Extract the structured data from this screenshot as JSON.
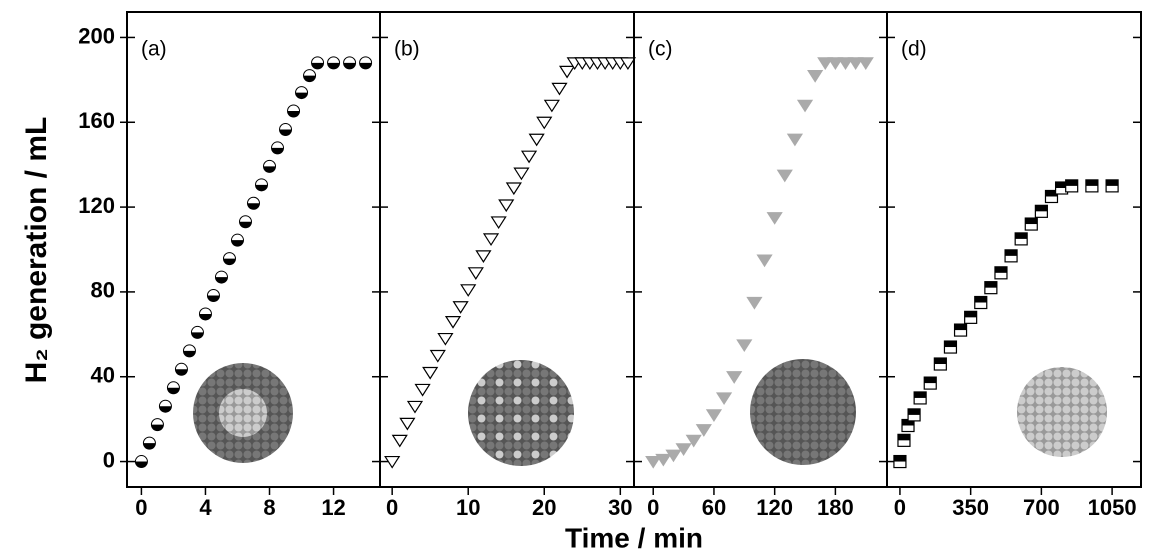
{
  "ylabel": "H₂ generation / mL",
  "xlabel": "Time / min",
  "chart_data": [
    {
      "type": "scatter",
      "panel_label": "(a)",
      "marker": "circle",
      "color": "#000000",
      "x": [
        0,
        0.5,
        1,
        1.5,
        2,
        2.5,
        3,
        3.5,
        4,
        4.5,
        5,
        5.5,
        6,
        6.5,
        7,
        7.5,
        8,
        8.5,
        9,
        9.5,
        10,
        10.5,
        11,
        12,
        13,
        14
      ],
      "values": [
        0,
        8.7,
        17.4,
        26.1,
        34.8,
        43.5,
        52.2,
        60.9,
        69.6,
        78.3,
        87,
        95.7,
        104.4,
        113.1,
        121.8,
        130.5,
        139.2,
        147.9,
        156.6,
        165.3,
        174,
        182,
        188,
        188,
        188,
        188
      ],
      "xlim": [
        -0.9,
        14.9
      ],
      "xticks": [
        0,
        4,
        8,
        12
      ],
      "ylim": [
        -12,
        212
      ],
      "yticks": [
        0,
        40,
        80,
        120,
        160,
        200
      ]
    },
    {
      "type": "scatter",
      "panel_label": "(b)",
      "marker": "triangle",
      "color": "#000000",
      "x": [
        0,
        1,
        2,
        3,
        4,
        5,
        6,
        7,
        8,
        9,
        10,
        11,
        12,
        13,
        14,
        15,
        16,
        17,
        18,
        19,
        20,
        21,
        22,
        23,
        24,
        25,
        26,
        27,
        28,
        29,
        30,
        31
      ],
      "values": [
        0,
        10,
        18,
        26,
        34,
        42,
        50,
        58,
        66,
        73,
        81,
        89,
        97,
        105,
        113,
        121,
        129,
        136,
        144,
        152,
        160,
        168,
        176,
        184,
        188,
        188,
        188,
        188,
        188,
        188,
        188,
        188
      ],
      "xlim": [
        -1.6,
        31.8
      ],
      "xticks": [
        0,
        10,
        20,
        30
      ],
      "ylim": [
        -12,
        212
      ],
      "yticks": [
        0,
        40,
        80,
        120,
        160,
        200
      ]
    },
    {
      "type": "scatter",
      "panel_label": "(c)",
      "marker": "triangle",
      "color": "#aaaaaa",
      "x": [
        0,
        10,
        20,
        30,
        40,
        50,
        60,
        70,
        80,
        90,
        100,
        110,
        120,
        130,
        140,
        150,
        160,
        170,
        180,
        190,
        200,
        210
      ],
      "values": [
        0,
        1,
        3,
        6,
        10,
        15,
        22,
        30,
        40,
        55,
        75,
        95,
        115,
        135,
        152,
        168,
        182,
        188,
        188,
        188,
        188,
        188
      ],
      "xlim": [
        -19,
        231
      ],
      "xticks": [
        0,
        60,
        120,
        180
      ],
      "ylim": [
        -12,
        212
      ],
      "yticks": [
        0,
        40,
        80,
        120,
        160,
        200
      ]
    },
    {
      "type": "scatter",
      "panel_label": "(d)",
      "marker": "square",
      "color": "#000000",
      "x": [
        0,
        20,
        40,
        70,
        100,
        150,
        200,
        250,
        300,
        350,
        400,
        450,
        500,
        550,
        600,
        650,
        700,
        750,
        800,
        850,
        950,
        1050
      ],
      "values": [
        0,
        10,
        17,
        22,
        30,
        37,
        46,
        54,
        62,
        68,
        75,
        82,
        89,
        97,
        105,
        112,
        118,
        125,
        129,
        130,
        130,
        130
      ],
      "xlim": [
        -64,
        1193
      ],
      "xticks": [
        0,
        350,
        700,
        1050
      ],
      "ylim": [
        -12,
        212
      ],
      "yticks": [
        0,
        40,
        80,
        120,
        160,
        200
      ]
    }
  ]
}
